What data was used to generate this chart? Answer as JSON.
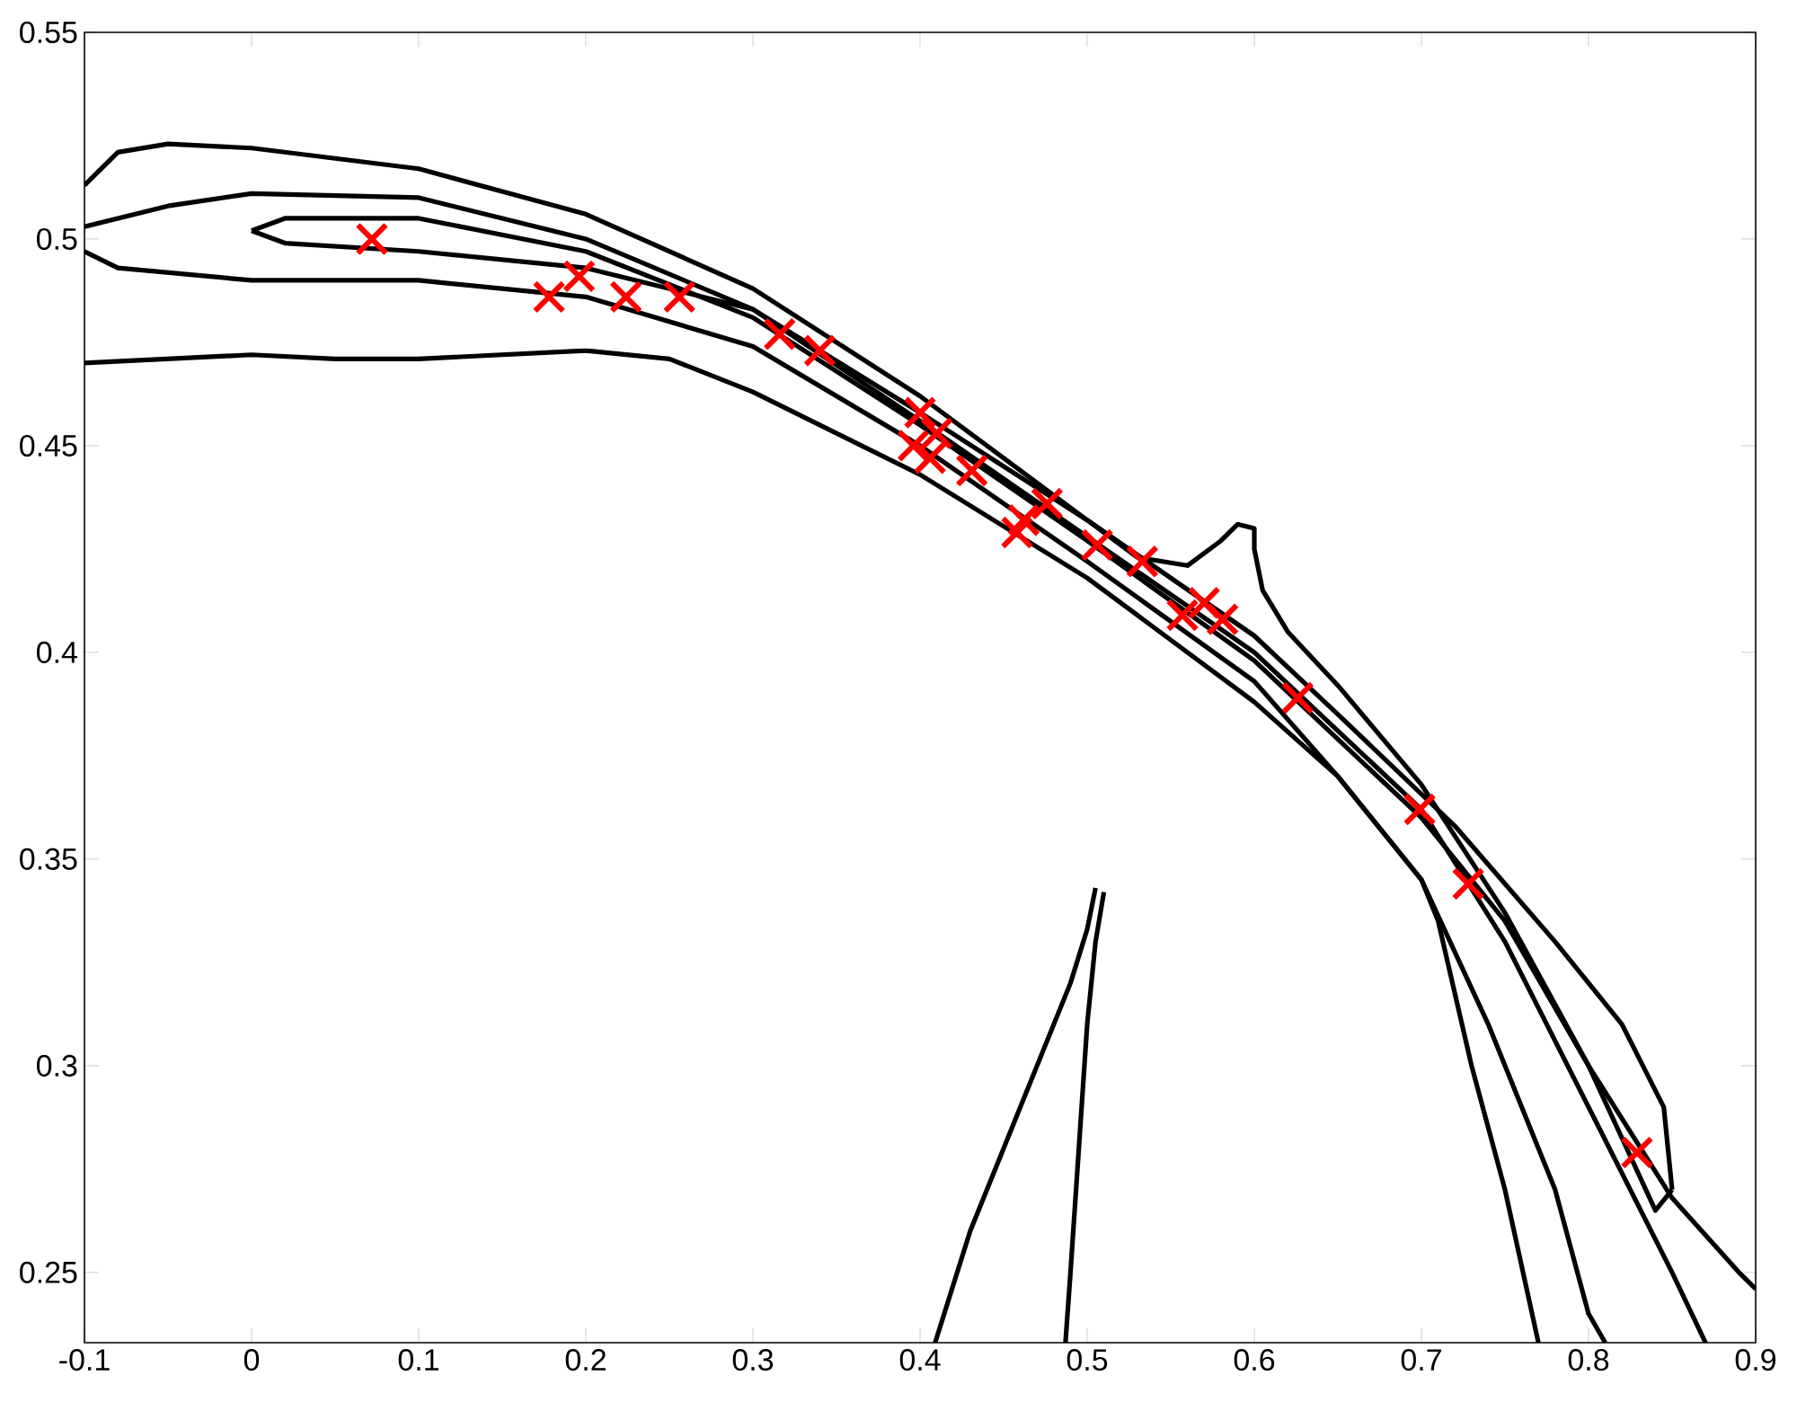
{
  "chart_data": {
    "type": "scatter",
    "xlim": [
      -0.1,
      0.9
    ],
    "ylim": [
      0.233,
      0.55
    ],
    "xticks": [
      -0.1,
      0,
      0.1,
      0.2,
      0.3,
      0.4,
      0.5,
      0.6,
      0.7,
      0.8,
      0.9
    ],
    "yticks": [
      0.25,
      0.3,
      0.35,
      0.4,
      0.45,
      0.5,
      0.55
    ],
    "grid": false,
    "series": [
      {
        "type": "line",
        "color": "#000000",
        "marker": "none",
        "line_style": "solid",
        "x": [
          -0.1,
          -0.08,
          -0.05,
          0,
          0.1,
          0.2,
          0.3,
          0.4,
          0.5,
          0.53,
          0.56,
          0.58,
          0.59,
          0.6,
          0.6,
          0.605,
          0.62,
          0.65,
          0.7,
          0.75,
          0.8,
          0.85,
          0.89,
          0.9
        ],
        "values": [
          0.513,
          0.521,
          0.523,
          0.522,
          0.517,
          0.506,
          0.488,
          0.462,
          0.432,
          0.423,
          0.421,
          0.427,
          0.431,
          0.43,
          0.425,
          0.415,
          0.405,
          0.392,
          0.368,
          0.337,
          0.3,
          0.268,
          0.25,
          0.246
        ]
      },
      {
        "type": "line",
        "color": "#000000",
        "marker": "none",
        "line_style": "solid",
        "x": [
          -0.1,
          -0.08,
          0,
          0.1,
          0.2,
          0.3,
          0.4,
          0.5,
          0.6,
          0.65,
          0.7,
          0.74,
          0.78,
          0.8,
          0.81
        ],
        "values": [
          0.497,
          0.493,
          0.49,
          0.49,
          0.486,
          0.474,
          0.45,
          0.422,
          0.393,
          0.37,
          0.345,
          0.31,
          0.27,
          0.24,
          0.233
        ]
      },
      {
        "type": "line",
        "color": "#000000",
        "marker": "none",
        "line_style": "solid",
        "x": [
          -0.1,
          -0.05,
          0,
          0.1,
          0.2,
          0.3,
          0.4,
          0.5,
          0.6,
          0.7,
          0.75,
          0.8,
          0.85,
          0.87
        ],
        "values": [
          0.503,
          0.508,
          0.511,
          0.51,
          0.5,
          0.483,
          0.456,
          0.428,
          0.4,
          0.362,
          0.33,
          0.29,
          0.25,
          0.233
        ]
      },
      {
        "type": "line",
        "color": "#000000",
        "marker": "none",
        "line_style": "solid",
        "x": [
          0.0,
          0.02,
          0.1,
          0.2,
          0.3,
          0.4,
          0.5,
          0.6,
          0.7,
          0.75,
          0.8,
          0.84,
          0.85
        ],
        "values": [
          0.502,
          0.505,
          0.505,
          0.497,
          0.481,
          0.455,
          0.427,
          0.398,
          0.36,
          0.335,
          0.3,
          0.265,
          0.27
        ]
      },
      {
        "type": "line",
        "color": "#000000",
        "marker": "none",
        "line_style": "solid",
        "x": [
          0.0,
          0.02,
          0.1,
          0.2,
          0.3,
          0.4,
          0.5,
          0.6,
          0.65,
          0.72,
          0.78,
          0.82,
          0.845,
          0.85
        ],
        "values": [
          0.502,
          0.499,
          0.497,
          0.493,
          0.483,
          0.458,
          0.432,
          0.404,
          0.385,
          0.358,
          0.33,
          0.31,
          0.29,
          0.27
        ]
      },
      {
        "type": "line",
        "color": "#000000",
        "marker": "none",
        "line_style": "solid",
        "x": [
          -0.1,
          0,
          0.05,
          0.1,
          0.2,
          0.25,
          0.3,
          0.4,
          0.5,
          0.6,
          0.65,
          0.68,
          0.7,
          0.71,
          0.73,
          0.75,
          0.77
        ],
        "values": [
          0.47,
          0.472,
          0.471,
          0.471,
          0.473,
          0.471,
          0.463,
          0.443,
          0.418,
          0.388,
          0.37,
          0.355,
          0.345,
          0.335,
          0.3,
          0.27,
          0.233
        ]
      },
      {
        "type": "line",
        "color": "#000000",
        "marker": "none",
        "line_style": "solid",
        "x": [
          0.409,
          0.43,
          0.46,
          0.49,
          0.5,
          0.505
        ],
        "values": [
          0.233,
          0.26,
          0.29,
          0.32,
          0.333,
          0.343
        ]
      },
      {
        "type": "line",
        "color": "#000000",
        "marker": "none",
        "line_style": "solid",
        "x": [
          0.487,
          0.49,
          0.495,
          0.5,
          0.505,
          0.51
        ],
        "values": [
          0.233,
          0.25,
          0.28,
          0.31,
          0.33,
          0.342
        ]
      },
      {
        "color": "#ff0000",
        "marker": "cross",
        "x": [
          0.072,
          0.178,
          0.196,
          0.224,
          0.256,
          0.316,
          0.34,
          0.4,
          0.41,
          0.396,
          0.406,
          0.431,
          0.462,
          0.476,
          0.458,
          0.506,
          0.533,
          0.57,
          0.581,
          0.557,
          0.626,
          0.699,
          0.728,
          0.829
        ],
        "values": [
          0.5,
          0.486,
          0.491,
          0.486,
          0.486,
          0.477,
          0.473,
          0.458,
          0.453,
          0.45,
          0.447,
          0.444,
          0.432,
          0.436,
          0.429,
          0.426,
          0.422,
          0.412,
          0.408,
          0.409,
          0.389,
          0.362,
          0.344,
          0.279
        ]
      }
    ]
  }
}
